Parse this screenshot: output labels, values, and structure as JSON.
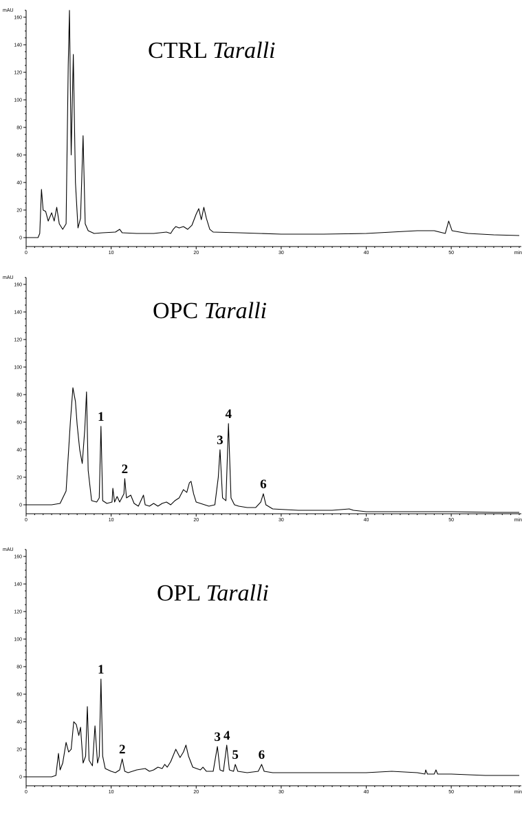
{
  "chart_data": [
    {
      "type": "line",
      "title": "CTRL",
      "title_italic": "Taralli",
      "ylabel": "mAU",
      "xlabel": "min",
      "xlim": [
        0,
        58
      ],
      "ylim": [
        -5,
        165
      ],
      "x_ticks": [
        0,
        10,
        20,
        30,
        40,
        50
      ],
      "y_ticks": [
        0,
        20,
        40,
        60,
        80,
        100,
        120,
        140,
        160
      ],
      "grid": false,
      "series": [
        {
          "points": [
            [
              0,
              0
            ],
            [
              1.4,
              0
            ],
            [
              1.6,
              3
            ],
            [
              1.8,
              35
            ],
            [
              2.0,
              20
            ],
            [
              2.3,
              19
            ],
            [
              2.6,
              12
            ],
            [
              3.0,
              18
            ],
            [
              3.3,
              12
            ],
            [
              3.6,
              22
            ],
            [
              3.9,
              10
            ],
            [
              4.3,
              6
            ],
            [
              4.7,
              10
            ],
            [
              4.95,
              125
            ],
            [
              5.1,
              165
            ],
            [
              5.3,
              60
            ],
            [
              5.55,
              133
            ],
            [
              5.8,
              40
            ],
            [
              6.1,
              7
            ],
            [
              6.4,
              14
            ],
            [
              6.7,
              74
            ],
            [
              6.95,
              10
            ],
            [
              7.3,
              5
            ],
            [
              8,
              3
            ],
            [
              9,
              3.5
            ],
            [
              10.5,
              4
            ],
            [
              11,
              6
            ],
            [
              11.3,
              3.5
            ],
            [
              13,
              3
            ],
            [
              15,
              3
            ],
            [
              16.5,
              4
            ],
            [
              17,
              3
            ],
            [
              17.3,
              6
            ],
            [
              17.6,
              8
            ],
            [
              18,
              7
            ],
            [
              18.5,
              8
            ],
            [
              19,
              6
            ],
            [
              19.5,
              9
            ],
            [
              20,
              17
            ],
            [
              20.3,
              21
            ],
            [
              20.6,
              13
            ],
            [
              20.9,
              22
            ],
            [
              21.2,
              14
            ],
            [
              21.6,
              6
            ],
            [
              22,
              4
            ],
            [
              25,
              3.5
            ],
            [
              30,
              2.5
            ],
            [
              35,
              2.5
            ],
            [
              40,
              3
            ],
            [
              43,
              4
            ],
            [
              46,
              5
            ],
            [
              48,
              5
            ],
            [
              49.3,
              3
            ],
            [
              49.7,
              12
            ],
            [
              50.1,
              5
            ],
            [
              51,
              4
            ],
            [
              52,
              3
            ],
            [
              55,
              2
            ],
            [
              58,
              1.5
            ]
          ]
        }
      ]
    },
    {
      "type": "line",
      "title": "OPC",
      "title_italic": "Taralli",
      "ylabel": "mAU",
      "xlabel": "min",
      "xlim": [
        0,
        58
      ],
      "ylim": [
        -5,
        165
      ],
      "x_ticks": [
        0,
        10,
        20,
        30,
        40,
        50
      ],
      "y_ticks": [
        0,
        20,
        40,
        60,
        80,
        100,
        120,
        140,
        160
      ],
      "grid": false,
      "annotations": [
        {
          "text": "1",
          "x": 8.8,
          "y": 57
        },
        {
          "text": "2",
          "x": 11.6,
          "y": 19
        },
        {
          "text": "3",
          "x": 22.8,
          "y": 40
        },
        {
          "text": "4",
          "x": 23.8,
          "y": 59
        },
        {
          "text": "6",
          "x": 27.9,
          "y": 8
        }
      ],
      "series": [
        {
          "points": [
            [
              0,
              0
            ],
            [
              3,
              0
            ],
            [
              4,
              1
            ],
            [
              4.7,
              10
            ],
            [
              5.2,
              60
            ],
            [
              5.5,
              85
            ],
            [
              5.8,
              75
            ],
            [
              6.0,
              58
            ],
            [
              6.3,
              40
            ],
            [
              6.6,
              30
            ],
            [
              6.9,
              55
            ],
            [
              7.1,
              82
            ],
            [
              7.3,
              25
            ],
            [
              7.7,
              3
            ],
            [
              8.3,
              2
            ],
            [
              8.6,
              5
            ],
            [
              8.8,
              57
            ],
            [
              9.0,
              3
            ],
            [
              9.5,
              1
            ],
            [
              10.1,
              2
            ],
            [
              10.2,
              12
            ],
            [
              10.4,
              2
            ],
            [
              10.7,
              6
            ],
            [
              11,
              2
            ],
            [
              11.5,
              8
            ],
            [
              11.6,
              19
            ],
            [
              11.8,
              5
            ],
            [
              12.3,
              7
            ],
            [
              12.7,
              1
            ],
            [
              13.2,
              -1
            ],
            [
              13.8,
              7
            ],
            [
              14,
              0
            ],
            [
              14.5,
              -1
            ],
            [
              15,
              1
            ],
            [
              15.5,
              -1
            ],
            [
              16,
              1
            ],
            [
              16.5,
              2
            ],
            [
              17,
              0
            ],
            [
              17.5,
              3
            ],
            [
              18,
              5
            ],
            [
              18.5,
              11
            ],
            [
              18.9,
              9
            ],
            [
              19.2,
              16
            ],
            [
              19.4,
              17
            ],
            [
              19.7,
              8
            ],
            [
              20,
              2
            ],
            [
              21,
              0
            ],
            [
              21.5,
              -1
            ],
            [
              22.2,
              0
            ],
            [
              22.6,
              20
            ],
            [
              22.8,
              40
            ],
            [
              23.1,
              5
            ],
            [
              23.5,
              3
            ],
            [
              23.8,
              59
            ],
            [
              24.1,
              5
            ],
            [
              24.5,
              0
            ],
            [
              25,
              -1
            ],
            [
              26,
              -2
            ],
            [
              27,
              -2
            ],
            [
              27.6,
              2
            ],
            [
              27.9,
              8
            ],
            [
              28.2,
              0
            ],
            [
              29,
              -3
            ],
            [
              32,
              -4
            ],
            [
              36,
              -4
            ],
            [
              38,
              -3
            ],
            [
              38.5,
              -4
            ],
            [
              40,
              -5
            ],
            [
              45,
              -5
            ],
            [
              50,
              -5
            ],
            [
              55,
              -5.5
            ],
            [
              58,
              -5.5
            ]
          ]
        }
      ]
    },
    {
      "type": "line",
      "title": "OPL",
      "title_italic": "Taralli",
      "ylabel": "mAU",
      "xlabel": "min",
      "xlim": [
        0,
        58
      ],
      "ylim": [
        -5,
        165
      ],
      "x_ticks": [
        0,
        10,
        20,
        30,
        40,
        50
      ],
      "y_ticks": [
        0,
        20,
        40,
        60,
        80,
        100,
        120,
        140,
        160
      ],
      "grid": false,
      "annotations": [
        {
          "text": "1",
          "x": 8.8,
          "y": 71
        },
        {
          "text": "2",
          "x": 11.3,
          "y": 13
        },
        {
          "text": "3",
          "x": 22.5,
          "y": 22
        },
        {
          "text": "4",
          "x": 23.6,
          "y": 23
        },
        {
          "text": "5",
          "x": 24.6,
          "y": 9
        },
        {
          "text": "6",
          "x": 27.7,
          "y": 9
        }
      ],
      "series": [
        {
          "points": [
            [
              0,
              0
            ],
            [
              3,
              0
            ],
            [
              3.5,
              1
            ],
            [
              3.8,
              17
            ],
            [
              4.0,
              5
            ],
            [
              4.3,
              10
            ],
            [
              4.7,
              25
            ],
            [
              5.0,
              18
            ],
            [
              5.3,
              20
            ],
            [
              5.6,
              40
            ],
            [
              5.9,
              38
            ],
            [
              6.2,
              30
            ],
            [
              6.4,
              36
            ],
            [
              6.7,
              10
            ],
            [
              7.0,
              15
            ],
            [
              7.2,
              51
            ],
            [
              7.4,
              12
            ],
            [
              7.8,
              8
            ],
            [
              8.1,
              37
            ],
            [
              8.4,
              10
            ],
            [
              8.6,
              15
            ],
            [
              8.8,
              71
            ],
            [
              9.0,
              15
            ],
            [
              9.3,
              6
            ],
            [
              10,
              4
            ],
            [
              10.5,
              3
            ],
            [
              11.0,
              5
            ],
            [
              11.3,
              13
            ],
            [
              11.6,
              4
            ],
            [
              12,
              3
            ],
            [
              13,
              5
            ],
            [
              14,
              6
            ],
            [
              14.5,
              4
            ],
            [
              15,
              5
            ],
            [
              15.5,
              7
            ],
            [
              16,
              6
            ],
            [
              16.3,
              9
            ],
            [
              16.6,
              7
            ],
            [
              17,
              11
            ],
            [
              17.6,
              20
            ],
            [
              18.1,
              14
            ],
            [
              18.5,
              18
            ],
            [
              18.8,
              23
            ],
            [
              19.1,
              15
            ],
            [
              19.6,
              7
            ],
            [
              20.5,
              5
            ],
            [
              20.8,
              7
            ],
            [
              21.2,
              4
            ],
            [
              22,
              4
            ],
            [
              22.3,
              15
            ],
            [
              22.5,
              22
            ],
            [
              22.8,
              5
            ],
            [
              23.2,
              4
            ],
            [
              23.6,
              23
            ],
            [
              23.9,
              5
            ],
            [
              24.4,
              4
            ],
            [
              24.6,
              9
            ],
            [
              24.9,
              4
            ],
            [
              26,
              3
            ],
            [
              27.3,
              4
            ],
            [
              27.7,
              9
            ],
            [
              28.0,
              4
            ],
            [
              29,
              3
            ],
            [
              32,
              3
            ],
            [
              35,
              3
            ],
            [
              40,
              3
            ],
            [
              43,
              4
            ],
            [
              46,
              3
            ],
            [
              46.9,
              2
            ],
            [
              47,
              5
            ],
            [
              47.2,
              2
            ],
            [
              48,
              2
            ],
            [
              48.2,
              5
            ],
            [
              48.4,
              2
            ],
            [
              50,
              2
            ],
            [
              54,
              1
            ],
            [
              55,
              1
            ],
            [
              58,
              1
            ]
          ]
        }
      ]
    }
  ]
}
